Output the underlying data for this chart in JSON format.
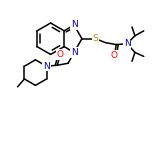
{
  "background_color": "#ffffff",
  "bond_color": "#000000",
  "atom_colors": {
    "N": "#0000cd",
    "O": "#ff0000",
    "S": "#b8860b",
    "C": "#000000"
  },
  "figsize": [
    1.67,
    1.56
  ],
  "dpi": 100,
  "lw": 1.1,
  "fontsize": 6.5
}
